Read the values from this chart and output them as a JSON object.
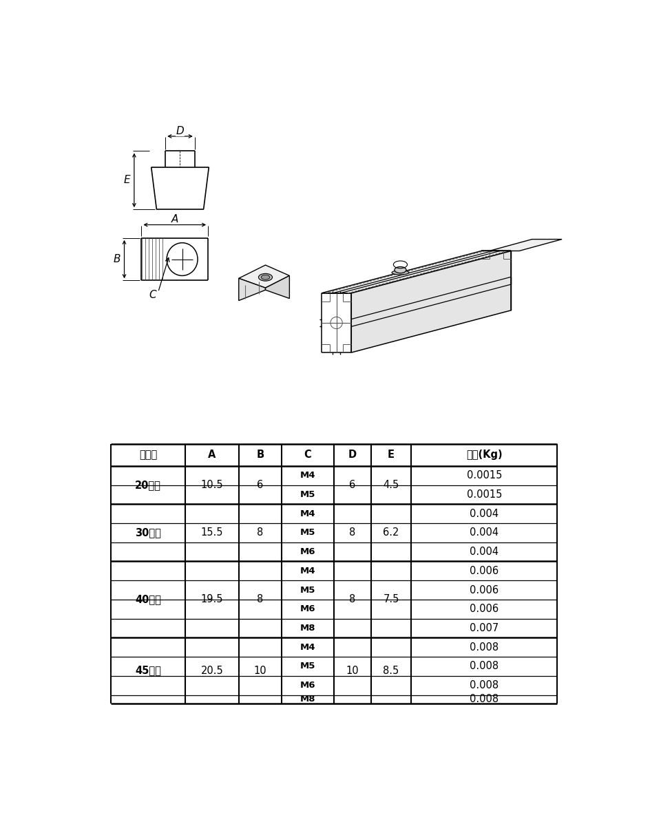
{
  "table_headers": [
    "订货号",
    "A",
    "B",
    "C",
    "D",
    "E",
    "重量(Kg)"
  ],
  "row_groups": [
    {
      "label": "20系列",
      "count": 2,
      "A": "10.5",
      "B": "6",
      "D": "6",
      "E": "4.5",
      "c_vals": [
        "M4",
        "M5"
      ],
      "wt_vals": [
        "0.0015",
        "0.0015"
      ]
    },
    {
      "label": "30系列",
      "count": 3,
      "A": "15.5",
      "B": "8",
      "D": "8",
      "E": "6.2",
      "c_vals": [
        "M4",
        "M5",
        "M6"
      ],
      "wt_vals": [
        "0.004",
        "0.004",
        "0.004"
      ]
    },
    {
      "label": "40系列",
      "count": 4,
      "A": "19.5",
      "B": "8",
      "D": "8",
      "E": "7.5",
      "c_vals": [
        "M4",
        "M5",
        "M6",
        "M8"
      ],
      "wt_vals": [
        "0.006",
        "0.006",
        "0.006",
        "0.007"
      ]
    },
    {
      "label": "45系列",
      "count": 4,
      "A": "20.5",
      "B": "10",
      "D": "10",
      "E": "8.5",
      "c_vals": [
        "M4",
        "M5",
        "M6",
        "M8"
      ],
      "wt_vals": [
        "0.008",
        "0.008",
        "0.008",
        "0.008"
      ]
    }
  ],
  "bg_color": "#ffffff",
  "line_color": "#000000"
}
